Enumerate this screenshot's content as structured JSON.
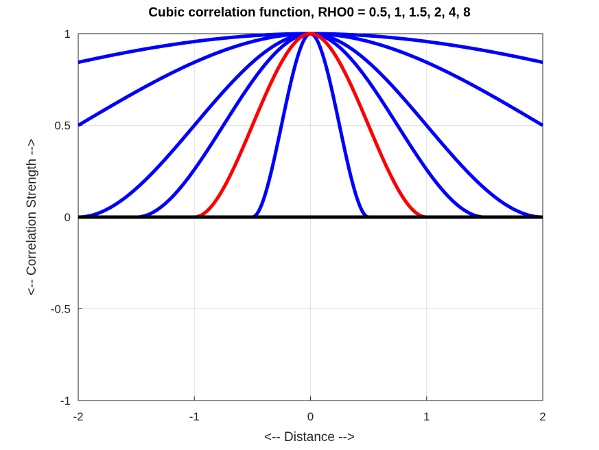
{
  "chart_data": {
    "type": "line",
    "title": "Cubic correlation function, RHO0 = 0.5, 1, 1.5, 2, 4, 8",
    "xlabel": "<-- Distance -->",
    "ylabel": "<-- Correlation Strength -->",
    "xlim": [
      -2,
      2
    ],
    "ylim": [
      -1,
      1
    ],
    "xticks": [
      -2,
      -1,
      0,
      1,
      2
    ],
    "xtick_labels": [
      "-2",
      "-1",
      "0",
      "1",
      "2"
    ],
    "yticks": [
      -1,
      -0.5,
      0,
      0.5,
      1
    ],
    "ytick_labels": [
      "-1",
      "-0.5",
      "0",
      "0.5",
      "1"
    ],
    "grid": true,
    "function": "cubic",
    "series": [
      {
        "name": "RHO0 = 0.5",
        "rho0": 0.5,
        "color": "#0000ff"
      },
      {
        "name": "RHO0 = 1",
        "rho0": 1,
        "color": "#ff0000"
      },
      {
        "name": "RHO0 = 1.5",
        "rho0": 1.5,
        "color": "#0000ff"
      },
      {
        "name": "RHO0 = 2",
        "rho0": 2,
        "color": "#0000ff"
      },
      {
        "name": "RHO0 = 4",
        "rho0": 4,
        "color": "#0000ff"
      },
      {
        "name": "RHO0 = 8",
        "rho0": 8,
        "color": "#0000ff"
      }
    ],
    "baseline": {
      "y": 0,
      "color": "#000000"
    }
  }
}
